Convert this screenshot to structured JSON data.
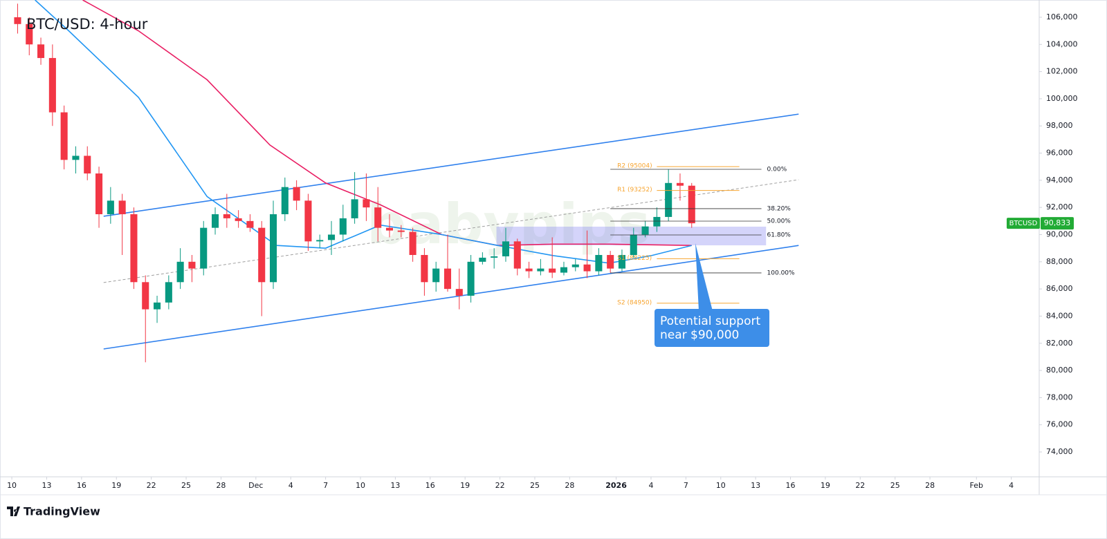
{
  "chart_data": {
    "type": "candlestick",
    "title": "BTC/USD: 4-hour",
    "watermark": "babypips",
    "up_color": "#089981",
    "down_color": "#f23645",
    "x": [
      0.5,
      1.5,
      2.5,
      3.5,
      4.5,
      5.5,
      6.5,
      7.5,
      8.5,
      9.5,
      10.5,
      11.5,
      12.5,
      13.5,
      14.5,
      15.5,
      16.5,
      17.5,
      18.5,
      19.5,
      20.5,
      21.5,
      22.5,
      23.5,
      24.5,
      25.5,
      26.5,
      27.5,
      28.5,
      29.5,
      30.5,
      31.5,
      32.5,
      33.5,
      34.5,
      35.5,
      36.5,
      37.5,
      38.5,
      39.5,
      40.5,
      41.5,
      42.5,
      43.5,
      44.5,
      45.5,
      46.5,
      47.5,
      48.5,
      49.5,
      50.5,
      51.5,
      52.5,
      53.5,
      54.5,
      55.5,
      56.5,
      57.5,
      58.5
    ],
    "open": [
      106000,
      105500,
      104000,
      103000,
      99000,
      95500,
      95800,
      94500,
      91500,
      92500,
      91500,
      86500,
      84500,
      85000,
      86500,
      88000,
      87500,
      90500,
      91500,
      91200,
      91000,
      90500,
      86500,
      91500,
      93500,
      92500,
      89500,
      89600,
      90000,
      91200,
      92600,
      92000,
      90500,
      90300,
      90200,
      88500,
      86500,
      87500,
      86000,
      85500,
      88000,
      88300,
      88400,
      89500,
      87500,
      87300,
      87500,
      87200,
      87600,
      87800,
      87300,
      88500,
      87500,
      88500,
      90000,
      90600,
      91300,
      93800,
      93600
    ],
    "high": [
      107000,
      106000,
      104500,
      104000,
      99500,
      96500,
      96500,
      95000,
      93500,
      93000,
      92000,
      87000,
      85500,
      87000,
      89000,
      88500,
      91000,
      92000,
      93000,
      91800,
      91500,
      91000,
      92500,
      94200,
      94000,
      93000,
      90000,
      91000,
      92200,
      94600,
      94500,
      93500,
      91500,
      90700,
      90500,
      89000,
      88000,
      90000,
      87500,
      88500,
      88700,
      89000,
      90500,
      89700,
      88000,
      88200,
      89800,
      88000,
      88200,
      90300,
      89000,
      88800,
      88900,
      90500,
      91000,
      92000,
      94800,
      94500,
      93800
    ],
    "low": [
      104800,
      103200,
      102500,
      98000,
      94800,
      94500,
      94000,
      90500,
      90800,
      88500,
      86000,
      80600,
      83500,
      84500,
      86000,
      86500,
      87000,
      90000,
      90500,
      90500,
      90200,
      84000,
      86000,
      91000,
      91800,
      88800,
      89000,
      88500,
      89500,
      90800,
      91000,
      89500,
      89800,
      89800,
      88000,
      85500,
      85800,
      85800,
      84500,
      85000,
      87800,
      87500,
      88000,
      87000,
      86800,
      87000,
      86800,
      87000,
      87300,
      86800,
      87000,
      87200,
      87300,
      88300,
      89800,
      90200,
      91000,
      92500,
      90500
    ],
    "close": [
      105500,
      104000,
      103000,
      99000,
      95500,
      95800,
      94500,
      91500,
      92500,
      91500,
      86500,
      84500,
      85000,
      86500,
      88000,
      87500,
      90500,
      91500,
      91200,
      91000,
      90500,
      86500,
      91500,
      93500,
      92500,
      89500,
      89600,
      90000,
      91200,
      92600,
      92000,
      90500,
      90300,
      90200,
      88500,
      86500,
      87500,
      86000,
      85500,
      88000,
      88300,
      88400,
      89500,
      87500,
      87300,
      87500,
      87200,
      87600,
      87800,
      87300,
      88500,
      87500,
      88500,
      90000,
      90600,
      91300,
      93800,
      93600,
      90833
    ],
    "lines": [
      {
        "color": "#e91e63",
        "x": [
          6.1,
          10.9,
          16.8,
          22.2,
          27,
          31.7,
          37,
          41.8,
          46.6,
          51.4,
          58.5
        ],
        "values": [
          107270,
          105000,
          101400,
          96600,
          93800,
          92200,
          90000,
          89200,
          89300,
          89300,
          89200
        ]
      },
      {
        "color": "#2196f3",
        "x": [
          2,
          4.9,
          10.9,
          16.8,
          22.8,
          27,
          31.7,
          37,
          41.8,
          46.6,
          51.4,
          55,
          58.5
        ],
        "values": [
          107270,
          105000,
          100100,
          92800,
          89200,
          89000,
          90700,
          90000,
          89200,
          88450,
          87900,
          88450,
          89200
        ]
      }
    ],
    "trendlines": [
      {
        "color": "#2f80ed",
        "dash": false,
        "x": [
          7.9,
          67.7
        ],
        "y": [
          91350,
          98870
        ]
      },
      {
        "color": "#2f80ed",
        "dash": false,
        "x": [
          7.9,
          67.7
        ],
        "y": [
          81580,
          89200
        ]
      },
      {
        "color": "#9e9e9e",
        "dash": true,
        "x": [
          7.9,
          67.7
        ],
        "y": [
          86470,
          94040
        ]
      }
    ],
    "zones": [
      {
        "color": "rgba(120,120,240,0.32)",
        "x": [
          41.7,
          64.9
        ],
        "y": [
          89210,
          90585
        ]
      }
    ],
    "fib": {
      "color": "#333333",
      "x": [
        51.5,
        64.5
      ],
      "levels": [
        {
          "value": 94807,
          "label": "0.00%"
        },
        {
          "value": 91910,
          "label": "38.20%"
        },
        {
          "value": 90990,
          "label": "50.00%"
        },
        {
          "value": 89975,
          "label": "61.80%"
        },
        {
          "value": 87180,
          "label": "100.00%"
        }
      ]
    },
    "pivots": {
      "color": "#f7a531",
      "x": [
        55.5,
        62.6
      ],
      "levels": [
        {
          "value": 95004,
          "label": "R2 (95004)"
        },
        {
          "value": 93252,
          "label": "R1 (93252)"
        },
        {
          "value": 88225,
          "label": "S1 (88225)"
        },
        {
          "value": 84950,
          "label": "S2 (84950)"
        }
      ]
    },
    "callout": {
      "lines": [
        "Potential support",
        "near $90,000"
      ]
    },
    "last_price": {
      "symbol": "BTCUSD",
      "value": 90833,
      "label": "90,833",
      "color": "#22ab35"
    },
    "xlim": [
      -0.54,
      88.4
    ],
    "xticks": [
      {
        "value": 0,
        "label": "10"
      },
      {
        "value": 3,
        "label": "13"
      },
      {
        "value": 6,
        "label": "16"
      },
      {
        "value": 9,
        "label": "19"
      },
      {
        "value": 12,
        "label": "22"
      },
      {
        "value": 15,
        "label": "25"
      },
      {
        "value": 18,
        "label": "28"
      },
      {
        "value": 21,
        "label": "Dec"
      },
      {
        "value": 24,
        "label": "4"
      },
      {
        "value": 27,
        "label": "7"
      },
      {
        "value": 30,
        "label": "10"
      },
      {
        "value": 33,
        "label": "13"
      },
      {
        "value": 36,
        "label": "16"
      },
      {
        "value": 39,
        "label": "19"
      },
      {
        "value": 42,
        "label": "22"
      },
      {
        "value": 45,
        "label": "25"
      },
      {
        "value": 48,
        "label": "28"
      },
      {
        "value": 52,
        "label": "2026"
      },
      {
        "value": 55,
        "label": "4"
      },
      {
        "value": 58,
        "label": "7"
      },
      {
        "value": 61,
        "label": "10"
      },
      {
        "value": 64,
        "label": "13"
      },
      {
        "value": 67,
        "label": "16"
      },
      {
        "value": 70,
        "label": "19"
      },
      {
        "value": 73,
        "label": "22"
      },
      {
        "value": 76,
        "label": "25"
      },
      {
        "value": 79,
        "label": "28"
      },
      {
        "value": 83,
        "label": "Feb"
      },
      {
        "value": 86,
        "label": "4"
      }
    ],
    "ylim": [
      72170,
      107270
    ],
    "yticks": [
      {
        "value": 74000,
        "label": "74,000"
      },
      {
        "value": 76000,
        "label": "76,000"
      },
      {
        "value": 78000,
        "label": "78,000"
      },
      {
        "value": 80000,
        "label": "80,000"
      },
      {
        "value": 82000,
        "label": "82,000"
      },
      {
        "value": 84000,
        "label": "84,000"
      },
      {
        "value": 86000,
        "label": "86,000"
      },
      {
        "value": 88000,
        "label": "88,000"
      },
      {
        "value": 90000,
        "label": "90,000"
      },
      {
        "value": 92000,
        "label": "92,000"
      },
      {
        "value": 94000,
        "label": "94,000"
      },
      {
        "value": 96000,
        "label": "96,000"
      },
      {
        "value": 98000,
        "label": "98,000"
      },
      {
        "value": 100000,
        "label": "100,000"
      },
      {
        "value": 102000,
        "label": "102,000"
      },
      {
        "value": 104000,
        "label": "104,000"
      },
      {
        "value": 106000,
        "label": "106,000"
      }
    ],
    "grid": false,
    "footer": "TradingView"
  }
}
